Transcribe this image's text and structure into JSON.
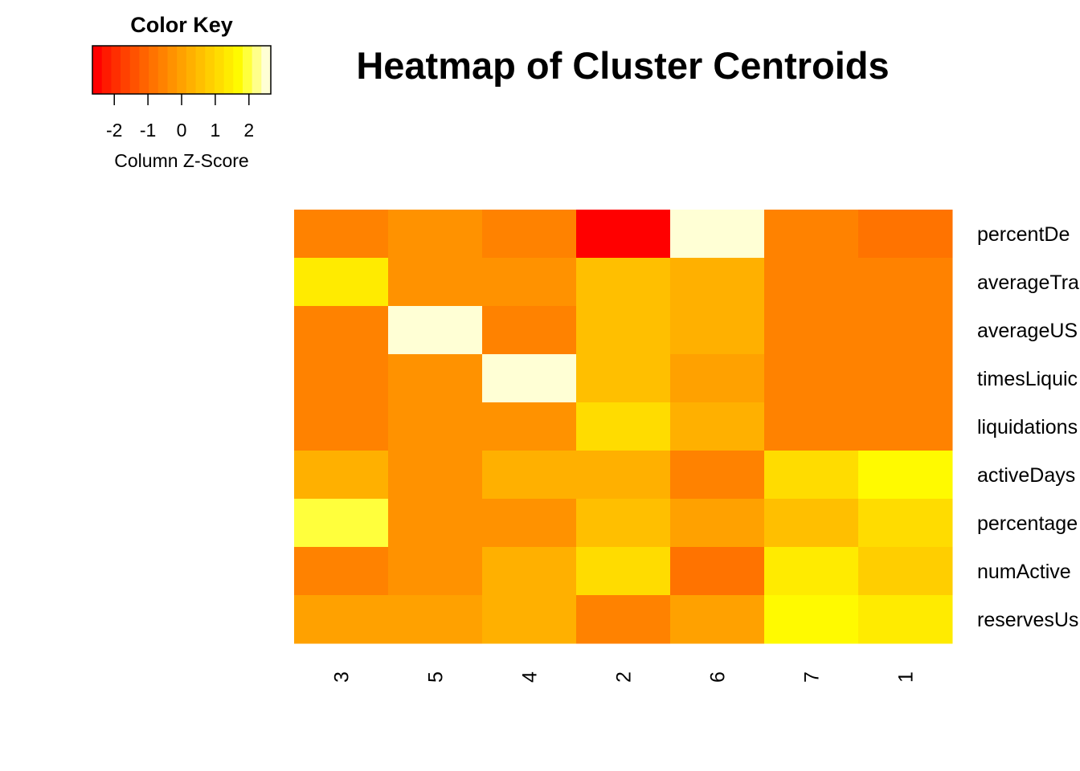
{
  "chart_data": {
    "type": "heatmap",
    "title": "Heatmap of Cluster Centroids",
    "color_key": {
      "title": "Color Key",
      "xlabel": "Column Z-Score",
      "ticks": [
        "-2",
        "-1",
        "0",
        "1",
        "2"
      ],
      "tick_values": [
        -2,
        -1,
        0,
        1,
        2
      ],
      "range": [
        -2.65,
        2.65
      ],
      "colors": [
        "#FF0000",
        "#FF1A00",
        "#FF2E00",
        "#FF4100",
        "#FF5200",
        "#FF6300",
        "#FF7300",
        "#FF8200",
        "#FF9200",
        "#FFA100",
        "#FFB000",
        "#FFBF00",
        "#FFCE00",
        "#FFDC00",
        "#FFEB00",
        "#FFFA00",
        "#FFFF3C",
        "#FFFF8A",
        "#FFFFD5"
      ]
    },
    "columns": [
      "3",
      "5",
      "4",
      "2",
      "6",
      "7",
      "1"
    ],
    "rows": [
      "percentDe",
      "averageTra",
      "averageUS",
      "timesLiquic",
      "liquidations",
      "activeDays",
      "percentage",
      "numActive",
      "reservesUs"
    ],
    "values": [
      [
        -0.45,
        -0.25,
        -0.45,
        -2.5,
        2.5,
        -0.45,
        -0.75
      ],
      [
        1.5,
        -0.3,
        -0.3,
        0.55,
        0.3,
        -0.45,
        -0.45
      ],
      [
        -0.45,
        2.4,
        -0.45,
        0.55,
        0.35,
        -0.45,
        -0.45
      ],
      [
        -0.45,
        -0.3,
        2.4,
        0.55,
        -0.1,
        -0.45,
        -0.45
      ],
      [
        -0.45,
        -0.3,
        -0.3,
        1.2,
        0.35,
        -0.45,
        -0.45
      ],
      [
        0.35,
        -0.3,
        0.35,
        0.35,
        -0.45,
        1.1,
        1.8
      ],
      [
        2.0,
        -0.3,
        -0.2,
        0.55,
        -0.1,
        0.6,
        1.0
      ],
      [
        -0.45,
        -0.3,
        0.15,
        1.0,
        -0.75,
        1.5,
        0.7
      ],
      [
        -0.1,
        -0.1,
        0.15,
        -0.45,
        -0.1,
        1.8,
        1.4
      ]
    ]
  }
}
